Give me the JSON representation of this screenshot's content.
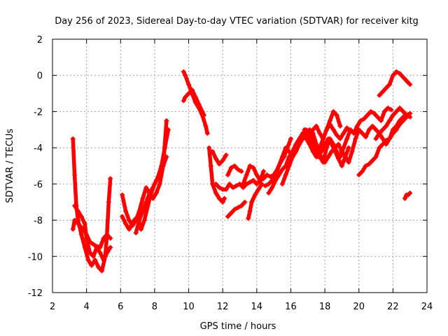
{
  "chart_data": {
    "type": "scatter",
    "title": "Day 256 of 2023, Sidereal Day-to-day VTEC variation (SDTVAR) for receiver kitg",
    "xlabel": "GPS time / hours",
    "ylabel": "SDTVAR / TECUs",
    "xlim": [
      2,
      24
    ],
    "ylim": [
      -12,
      2
    ],
    "xticks": [
      2,
      4,
      6,
      8,
      10,
      12,
      14,
      16,
      18,
      20,
      22,
      24
    ],
    "yticks": [
      2,
      0,
      -2,
      -4,
      -6,
      -8,
      -10,
      -12
    ],
    "grid": true,
    "marker": "+",
    "color": "#ff0000",
    "series": [
      {
        "name": "s1",
        "x": [
          3.2,
          3.3,
          3.4,
          3.5,
          3.7,
          3.9,
          4.1,
          4.3,
          4.5,
          4.7,
          4.9,
          5.1,
          5.2,
          5.3,
          5.4
        ],
        "y": [
          -3.5,
          -5.5,
          -7.2,
          -8.0,
          -8.8,
          -9.5,
          -10.2,
          -10.5,
          -10.2,
          -10.6,
          -10.8,
          -10.0,
          -8.8,
          -7.0,
          -5.7
        ]
      },
      {
        "name": "s2",
        "x": [
          3.3,
          3.5,
          3.7,
          3.9,
          4.0,
          4.2,
          4.4,
          4.6,
          4.8,
          5.0,
          5.2,
          5.4
        ],
        "y": [
          -7.2,
          -7.5,
          -7.8,
          -8.2,
          -9.0,
          -9.8,
          -10.0,
          -9.5,
          -9.8,
          -10.2,
          -9.8,
          -9.5
        ]
      },
      {
        "name": "s3",
        "x": [
          3.2,
          3.3,
          3.5,
          3.8,
          4.0,
          4.2,
          4.5,
          4.8,
          5.0,
          5.2,
          5.4
        ],
        "y": [
          -8.5,
          -8.0,
          -8.2,
          -8.5,
          -8.8,
          -9.2,
          -9.4,
          -9.5,
          -9.0,
          -8.8,
          -9.0
        ]
      },
      {
        "name": "s4",
        "x": [
          6.1,
          6.3,
          6.5,
          6.7,
          6.9,
          7.1,
          7.3,
          7.5,
          7.7,
          7.9,
          8.1,
          8.3,
          8.5,
          8.7
        ],
        "y": [
          -6.6,
          -7.5,
          -8.0,
          -8.3,
          -8.0,
          -7.5,
          -6.8,
          -6.2,
          -6.5,
          -6.8,
          -6.5,
          -6.0,
          -5.0,
          -2.5
        ]
      },
      {
        "name": "s5",
        "x": [
          6.1,
          6.3,
          6.5,
          6.8,
          7.0,
          7.2,
          7.4,
          7.6,
          7.8,
          8.0,
          8.2,
          8.4,
          8.6,
          8.8
        ],
        "y": [
          -7.8,
          -8.2,
          -8.5,
          -8.0,
          -7.8,
          -8.5,
          -8.0,
          -7.2,
          -6.5,
          -6.0,
          -5.6,
          -5.0,
          -4.0,
          -3.0
        ]
      },
      {
        "name": "s6",
        "x": [
          6.9,
          7.1,
          7.3,
          7.5,
          7.7,
          7.9,
          8.1,
          8.3,
          8.5,
          8.7
        ],
        "y": [
          -8.7,
          -8.0,
          -7.5,
          -7.0,
          -6.5,
          -6.2,
          -5.8,
          -5.5,
          -5.0,
          -4.5
        ]
      },
      {
        "name": "s7",
        "x": [
          9.7,
          9.8,
          10.0,
          10.2,
          10.4,
          10.6,
          10.8,
          11.0,
          11.1
        ],
        "y": [
          0.2,
          0.0,
          -0.5,
          -1.0,
          -1.5,
          -1.8,
          -2.2,
          -2.8,
          -3.2
        ]
      },
      {
        "name": "s8",
        "x": [
          9.7,
          9.8,
          10.0,
          10.2,
          10.4,
          10.6,
          10.8,
          10.9
        ],
        "y": [
          -1.4,
          -1.2,
          -1.0,
          -0.8,
          -1.2,
          -1.6,
          -2.0,
          -2.2
        ]
      },
      {
        "name": "s9",
        "x": [
          11.2,
          11.3,
          11.4,
          11.6,
          11.8,
          12.0,
          12.1
        ],
        "y": [
          -4.0,
          -5.0,
          -6.0,
          -6.5,
          -6.8,
          -7.0,
          -6.8
        ]
      },
      {
        "name": "s10",
        "x": [
          11.4,
          11.6,
          11.8,
          12.0,
          12.2
        ],
        "y": [
          -4.2,
          -4.6,
          -4.9,
          -4.7,
          -4.4
        ]
      },
      {
        "name": "s11",
        "x": [
          11.6,
          11.8,
          12.0,
          12.2,
          12.4,
          12.6,
          12.8,
          13.0,
          13.2,
          13.4,
          13.6,
          13.8,
          14.0,
          14.2,
          14.4,
          14.6,
          14.8,
          15.0,
          15.2,
          15.4,
          15.6,
          15.8,
          16.0
        ],
        "y": [
          -6.0,
          -6.2,
          -6.3,
          -6.3,
          -6.0,
          -6.2,
          -6.1,
          -6.0,
          -6.2,
          -6.0,
          -5.9,
          -5.8,
          -6.0,
          -5.8,
          -5.7,
          -5.5,
          -5.6,
          -5.5,
          -5.2,
          -4.8,
          -4.5,
          -4.0,
          -3.5
        ]
      },
      {
        "name": "s12",
        "x": [
          12.3,
          12.5,
          12.7,
          12.9,
          13.1,
          13.3
        ],
        "y": [
          -7.8,
          -7.6,
          -7.4,
          -7.3,
          -7.2,
          -7.0
        ]
      },
      {
        "name": "s13",
        "x": [
          12.3,
          12.5,
          12.7,
          12.9,
          13.1
        ],
        "y": [
          -5.5,
          -5.1,
          -5.0,
          -5.2,
          -5.3
        ]
      },
      {
        "name": "s14",
        "x": [
          13.2,
          13.4,
          13.6,
          13.8,
          14.0,
          14.2,
          14.4
        ],
        "y": [
          -6.0,
          -5.5,
          -5.0,
          -5.1,
          -5.5,
          -5.8,
          -5.3
        ]
      },
      {
        "name": "s15",
        "x": [
          13.5,
          13.6,
          13.7,
          13.9,
          14.1,
          14.3
        ],
        "y": [
          -7.9,
          -7.5,
          -7.0,
          -6.6,
          -6.3,
          -6.0
        ]
      },
      {
        "name": "s16",
        "x": [
          14.5,
          14.7,
          14.9,
          15.1,
          15.3,
          15.5,
          15.7,
          15.9,
          16.1,
          16.3,
          16.5,
          16.7,
          16.9,
          17.1,
          17.3,
          17.5,
          17.7,
          17.9,
          18.1,
          18.3,
          18.5,
          18.7,
          18.9
        ],
        "y": [
          -6.1,
          -6.0,
          -5.8,
          -5.5,
          -5.0,
          -4.5,
          -4.0,
          -4.2,
          -4.5,
          -4.2,
          -3.8,
          -3.2,
          -3.0,
          -3.5,
          -3.0,
          -2.8,
          -3.2,
          -3.5,
          -3.0,
          -2.5,
          -2.0,
          -2.2,
          -2.8
        ]
      },
      {
        "name": "s17",
        "x": [
          14.7,
          14.9,
          15.1,
          15.3,
          15.5,
          15.7,
          15.9,
          16.1,
          16.3,
          16.5,
          16.7,
          16.9,
          17.1,
          17.3,
          17.5,
          17.7,
          17.9,
          18.1,
          18.3,
          18.5,
          18.7,
          18.9,
          19.1,
          19.3,
          19.5
        ],
        "y": [
          -6.5,
          -6.2,
          -5.8,
          -5.5,
          -5.2,
          -5.0,
          -4.5,
          -4.2,
          -3.8,
          -3.5,
          -3.2,
          -3.5,
          -3.8,
          -4.2,
          -4.5,
          -4.0,
          -3.5,
          -3.0,
          -2.7,
          -3.0,
          -3.3,
          -3.5,
          -3.2,
          -2.9,
          -3.1
        ]
      },
      {
        "name": "s18",
        "x": [
          15.5,
          15.7,
          15.9,
          16.1,
          16.3,
          16.5,
          16.7,
          16.9,
          17.1,
          17.3,
          17.5,
          17.7,
          17.9,
          18.1,
          18.3,
          18.5,
          18.7,
          18.9,
          19.1,
          19.3,
          19.5,
          19.7,
          19.9,
          20.1,
          20.3,
          20.5,
          20.7,
          20.9,
          21.1,
          21.3,
          21.5,
          21.7,
          21.9
        ],
        "y": [
          -6.0,
          -5.5,
          -5.0,
          -4.5,
          -4.2,
          -3.8,
          -3.5,
          -3.2,
          -3.0,
          -3.2,
          -3.8,
          -4.5,
          -4.8,
          -4.0,
          -3.5,
          -3.8,
          -4.2,
          -4.5,
          -4.0,
          -3.5,
          -3.0,
          -3.2,
          -2.8,
          -2.5,
          -2.4,
          -2.2,
          -2.0,
          -2.1,
          -2.3,
          -2.5,
          -2.0,
          -1.8,
          -1.9
        ]
      },
      {
        "name": "s19",
        "x": [
          16.8,
          17.0,
          17.2,
          17.4,
          17.6,
          17.8,
          18.0,
          18.2,
          18.4,
          18.6,
          18.8,
          19.0,
          19.2,
          19.4,
          19.6,
          19.8,
          20.0,
          20.2,
          20.4,
          20.6,
          20.8,
          21.0,
          21.2,
          21.4,
          21.6,
          21.8,
          22.0,
          22.2,
          22.4,
          22.6,
          22.8,
          23.0
        ],
        "y": [
          -3.0,
          -3.2,
          -3.5,
          -3.8,
          -4.2,
          -4.5,
          -4.8,
          -4.5,
          -4.2,
          -4.0,
          -3.8,
          -4.2,
          -4.5,
          -4.8,
          -4.2,
          -3.5,
          -3.0,
          -3.2,
          -3.4,
          -3.0,
          -2.8,
          -3.0,
          -3.2,
          -3.5,
          -3.8,
          -3.5,
          -3.0,
          -2.8,
          -2.5,
          -2.3,
          -2.2,
          -2.1
        ]
      },
      {
        "name": "s20",
        "x": [
          17.2,
          17.4,
          17.6,
          17.8,
          18.0,
          18.2,
          18.4,
          18.6,
          18.8,
          19.0,
          19.2,
          19.4
        ],
        "y": [
          -3.5,
          -4.0,
          -4.5,
          -4.2,
          -3.8,
          -3.5,
          -3.8,
          -4.2,
          -4.6,
          -5.0,
          -4.5,
          -4.0
        ]
      },
      {
        "name": "s21",
        "x": [
          20.0,
          20.2,
          20.4,
          20.6,
          20.8,
          21.0,
          21.2,
          21.4,
          21.6,
          21.8,
          22.0,
          22.2,
          22.4,
          22.6,
          22.8,
          23.0
        ],
        "y": [
          -5.5,
          -5.3,
          -5.0,
          -4.9,
          -4.7,
          -4.5,
          -4.0,
          -3.8,
          -3.6,
          -3.5,
          -3.2,
          -3.0,
          -2.7,
          -2.5,
          -2.3,
          -2.1
        ]
      },
      {
        "name": "s22",
        "x": [
          21.0,
          21.2,
          21.4,
          21.6,
          21.8,
          22.0,
          22.2,
          22.4,
          22.6,
          22.8,
          23.0
        ],
        "y": [
          -3.5,
          -3.2,
          -3.0,
          -2.8,
          -2.5,
          -2.2,
          -2.0,
          -1.8,
          -2.0,
          -2.2,
          -2.3
        ]
      },
      {
        "name": "s23",
        "x": [
          21.2,
          21.4,
          21.6,
          21.8,
          22.0,
          22.2,
          22.4,
          22.6,
          22.8,
          23.0
        ],
        "y": [
          -1.1,
          -0.9,
          -0.7,
          -0.5,
          0.0,
          0.2,
          0.1,
          -0.1,
          -0.3,
          -0.5
        ]
      },
      {
        "name": "s24",
        "x": [
          22.7,
          22.8,
          22.9,
          23.0
        ],
        "y": [
          -6.8,
          -6.6,
          -6.6,
          -6.5
        ]
      }
    ]
  }
}
